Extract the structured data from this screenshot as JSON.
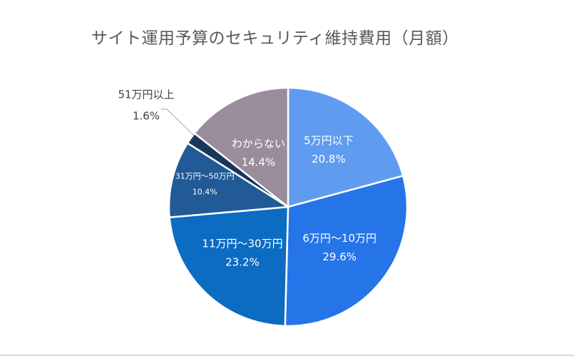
{
  "chart_data": {
    "type": "pie",
    "title": "サイト運用予算のセキュリティ維持費用（月額）",
    "slices": [
      {
        "label": "5万円以下",
        "percent_label": "20.8%",
        "value": 20.8,
        "color": "#5f9cf0",
        "label_color": "#ffffff"
      },
      {
        "label": "6万円～10万円",
        "percent_label": "29.6%",
        "value": 29.6,
        "color": "#2575e8",
        "label_color": "#ffffff"
      },
      {
        "label": "11万円～30万円",
        "percent_label": "23.2%",
        "value": 23.2,
        "color": "#0b6cc2",
        "label_color": "#ffffff"
      },
      {
        "label": "31万円～50万円",
        "percent_label": "10.4%",
        "value": 10.4,
        "color": "#215a97",
        "label_color": "#ffffff"
      },
      {
        "label": "51万円以上",
        "percent_label": "1.6%",
        "value": 1.6,
        "color": "#1b365d",
        "label_color": "#404040"
      },
      {
        "label": "わからない",
        "percent_label": "14.4%",
        "value": 14.4,
        "color": "#9b8c9c",
        "label_color": "#ffffff"
      }
    ],
    "start_angle": "12 o'clock",
    "direction": "clockwise",
    "legend": "none",
    "data_labels": "inside, leader line for small slice"
  }
}
